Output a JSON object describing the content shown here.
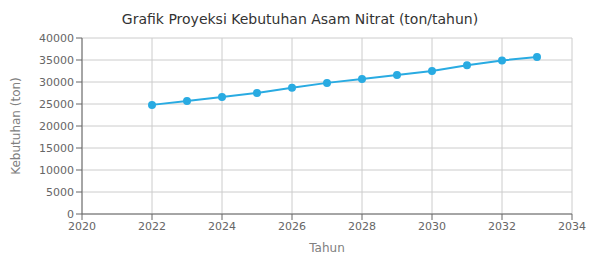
{
  "chart_data": {
    "type": "line",
    "title": "Grafik Proyeksi Kebutuhan Asam Nitrat (ton/tahun)",
    "xlabel": "Tahun",
    "ylabel": "Kebutuhan (ton)",
    "x": [
      2022,
      2023,
      2024,
      2025,
      2026,
      2027,
      2028,
      2029,
      2030,
      2031,
      2032,
      2033
    ],
    "values": [
      24800,
      25700,
      26600,
      27500,
      28700,
      29800,
      30700,
      31600,
      32500,
      33800,
      34900,
      35700
    ],
    "xlim": [
      2020,
      2034
    ],
    "xticks": [
      2020,
      2022,
      2024,
      2026,
      2028,
      2030,
      2032,
      2034
    ],
    "ylim": [
      0,
      40000
    ],
    "yticks": [
      0,
      5000,
      10000,
      15000,
      20000,
      25000,
      30000,
      35000,
      40000
    ],
    "color": "#29ABE2",
    "marker": "circle",
    "grid": true
  }
}
